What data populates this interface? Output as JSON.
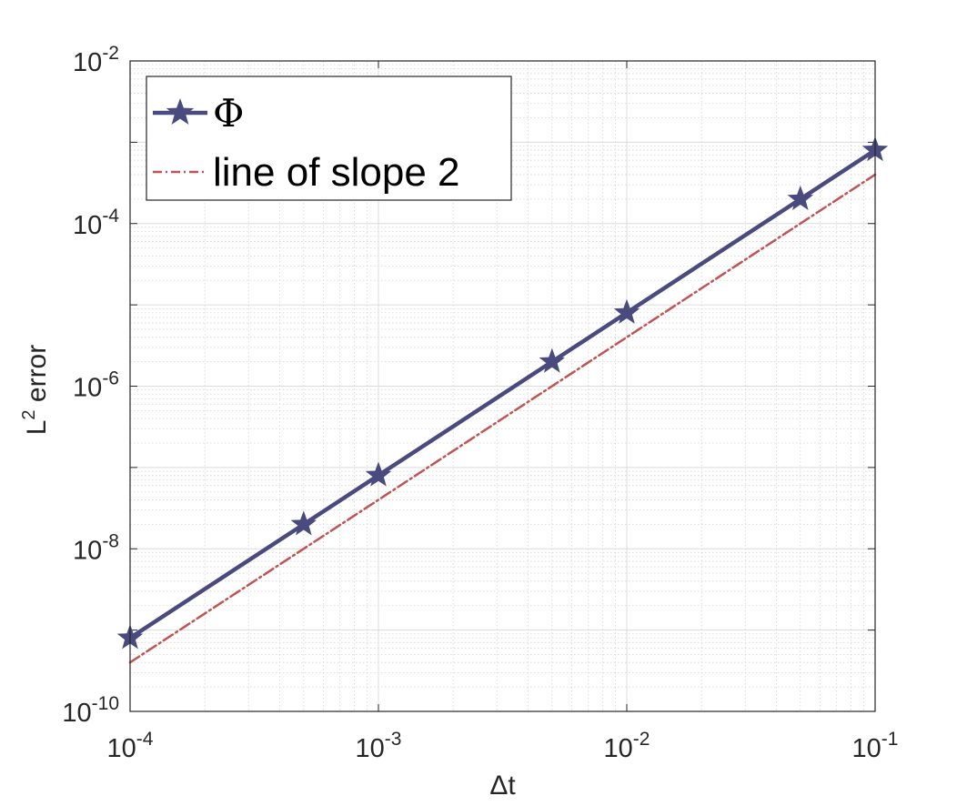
{
  "chart_data": {
    "type": "line",
    "xscale": "log",
    "yscale": "log",
    "xlim": [
      0.0001,
      0.1
    ],
    "ylim": [
      1e-10,
      0.01
    ],
    "xlabel": "Δt",
    "ylabel": "L",
    "ylabel_sup": "2",
    "ylabel_rest": " error",
    "grid": true,
    "minor_grid": true,
    "legend_position": "top-left",
    "x_ticks": [
      {
        "value": 0.0001,
        "base": "10",
        "exp": "-4"
      },
      {
        "value": 0.001,
        "base": "10",
        "exp": "-3"
      },
      {
        "value": 0.01,
        "base": "10",
        "exp": "-2"
      },
      {
        "value": 0.1,
        "base": "10",
        "exp": "-1"
      }
    ],
    "y_ticks": [
      {
        "value": 1e-10,
        "base": "10",
        "exp": "-10"
      },
      {
        "value": 1e-08,
        "base": "10",
        "exp": "-8"
      },
      {
        "value": 1e-06,
        "base": "10",
        "exp": "-6"
      },
      {
        "value": 0.0001,
        "base": "10",
        "exp": "-4"
      },
      {
        "value": 0.01,
        "base": "10",
        "exp": "-2"
      }
    ],
    "series": [
      {
        "name": "Φ",
        "color": "#4a4a7f",
        "style": "solid",
        "marker": "star",
        "x": [
          0.0001,
          0.0005,
          0.001,
          0.005,
          0.01,
          0.05,
          0.1
        ],
        "y": [
          8e-10,
          2e-08,
          8e-08,
          2e-06,
          8e-06,
          0.0002,
          0.0008
        ]
      },
      {
        "name": "line of slope 2",
        "color": "#c05454",
        "style": "dashdot",
        "marker": "none",
        "x": [
          0.0001,
          0.1
        ],
        "y": [
          4e-10,
          0.0004
        ]
      }
    ]
  }
}
